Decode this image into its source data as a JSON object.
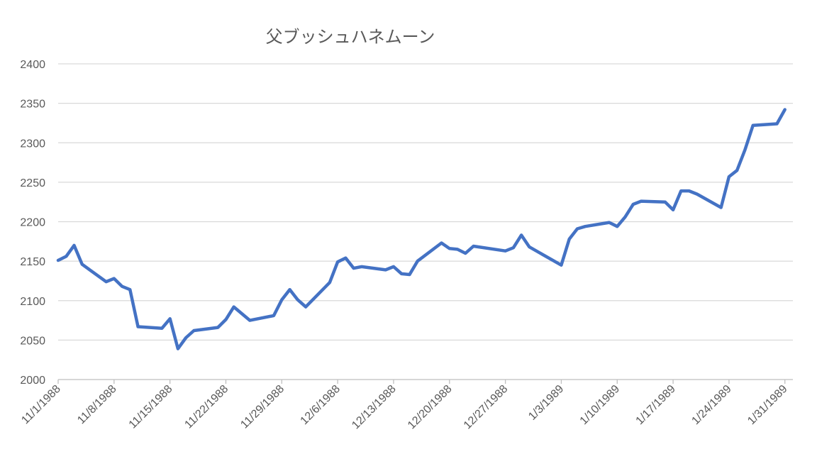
{
  "chart_data": {
    "type": "line",
    "title": "父ブッシュハネムーン",
    "xlabel": "",
    "ylabel": "",
    "ylim": [
      2000,
      2400
    ],
    "yticks": [
      "2000",
      "2050",
      "2100",
      "2150",
      "2200",
      "2250",
      "2300",
      "2350",
      "2400"
    ],
    "xrange": [
      "1988-11-01",
      "1989-02-01"
    ],
    "xtick_dates": [
      "1988-11-01",
      "1988-11-08",
      "1988-11-15",
      "1988-11-22",
      "1988-11-29",
      "1988-12-06",
      "1988-12-13",
      "1988-12-20",
      "1988-12-27",
      "1989-01-03",
      "1989-01-10",
      "1989-01-17",
      "1989-01-24",
      "1989-01-31"
    ],
    "xtick_labels": [
      "11/1/1988",
      "11/8/1988",
      "11/15/1988",
      "11/22/1988",
      "11/29/1988",
      "12/6/1988",
      "12/13/1988",
      "12/20/1988",
      "12/27/1988",
      "1/3/1989",
      "1/10/1989",
      "1/17/1989",
      "1/24/1989",
      "1/31/1989"
    ],
    "grid": true,
    "line_color": "#4472C4",
    "series": [
      {
        "name": "",
        "points": [
          [
            "1988-11-01",
            2151
          ],
          [
            "1988-11-02",
            2156
          ],
          [
            "1988-11-03",
            2170
          ],
          [
            "1988-11-04",
            2146
          ],
          [
            "1988-11-07",
            2124
          ],
          [
            "1988-11-08",
            2128
          ],
          [
            "1988-11-09",
            2118
          ],
          [
            "1988-11-10",
            2114
          ],
          [
            "1988-11-11",
            2067
          ],
          [
            "1988-11-14",
            2065
          ],
          [
            "1988-11-15",
            2077
          ],
          [
            "1988-11-16",
            2039
          ],
          [
            "1988-11-17",
            2053
          ],
          [
            "1988-11-18",
            2062
          ],
          [
            "1988-11-21",
            2066
          ],
          [
            "1988-11-22",
            2076
          ],
          [
            "1988-11-23",
            2092
          ],
          [
            "1988-11-25",
            2075
          ],
          [
            "1988-11-28",
            2081
          ],
          [
            "1988-11-29",
            2101
          ],
          [
            "1988-11-30",
            2114
          ],
          [
            "1988-12-01",
            2101
          ],
          [
            "1988-12-02",
            2092
          ],
          [
            "1988-12-05",
            2123
          ],
          [
            "1988-12-06",
            2149
          ],
          [
            "1988-12-07",
            2154
          ],
          [
            "1988-12-08",
            2141
          ],
          [
            "1988-12-09",
            2143
          ],
          [
            "1988-12-12",
            2139
          ],
          [
            "1988-12-13",
            2143
          ],
          [
            "1988-12-14",
            2134
          ],
          [
            "1988-12-15",
            2133
          ],
          [
            "1988-12-16",
            2150
          ],
          [
            "1988-12-19",
            2173
          ],
          [
            "1988-12-20",
            2166
          ],
          [
            "1988-12-21",
            2165
          ],
          [
            "1988-12-22",
            2160
          ],
          [
            "1988-12-23",
            2169
          ],
          [
            "1988-12-27",
            2163
          ],
          [
            "1988-12-28",
            2167
          ],
          [
            "1988-12-29",
            2183
          ],
          [
            "1988-12-30",
            2168
          ],
          [
            "1989-01-03",
            2145
          ],
          [
            "1989-01-04",
            2178
          ],
          [
            "1989-01-05",
            2191
          ],
          [
            "1989-01-06",
            2194
          ],
          [
            "1989-01-09",
            2199
          ],
          [
            "1989-01-10",
            2194
          ],
          [
            "1989-01-11",
            2206
          ],
          [
            "1989-01-12",
            2222
          ],
          [
            "1989-01-13",
            2226
          ],
          [
            "1989-01-16",
            2225
          ],
          [
            "1989-01-17",
            2215
          ],
          [
            "1989-01-18",
            2239
          ],
          [
            "1989-01-19",
            2239
          ],
          [
            "1989-01-20",
            2235
          ],
          [
            "1989-01-23",
            2218
          ],
          [
            "1989-01-24",
            2257
          ],
          [
            "1989-01-25",
            2265
          ],
          [
            "1989-01-26",
            2291
          ],
          [
            "1989-01-27",
            2322
          ],
          [
            "1989-01-30",
            2324
          ],
          [
            "1989-01-31",
            2342
          ]
        ]
      }
    ]
  }
}
